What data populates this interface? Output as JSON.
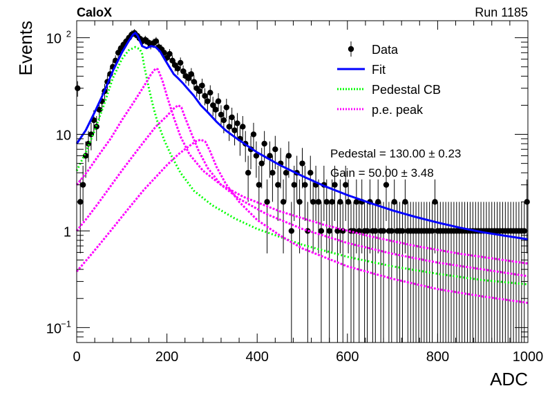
{
  "chart_data": {
    "type": "scatter",
    "experiment_label": "CaloX",
    "run_label": "Run 1185",
    "xlabel": "ADC",
    "ylabel": "Events",
    "xlim": [
      0,
      1000
    ],
    "ylim": [
      0.07,
      150
    ],
    "y_scale": "log",
    "x_ticks": [
      {
        "value": 0,
        "label": "0"
      },
      {
        "value": 200,
        "label": "200"
      },
      {
        "value": 400,
        "label": "400"
      },
      {
        "value": 600,
        "label": "600"
      },
      {
        "value": 800,
        "label": "800"
      },
      {
        "value": 1000,
        "label": "1000"
      }
    ],
    "y_ticks": [
      {
        "value": 0.1,
        "label": "10",
        "sup": "−1"
      },
      {
        "value": 1,
        "label": "1",
        "sup": ""
      },
      {
        "value": 10,
        "label": "10",
        "sup": ""
      },
      {
        "value": 100,
        "label": "10",
        "sup": "2"
      }
    ],
    "legend": {
      "position": "top-right",
      "entries": [
        {
          "label": "Data",
          "style": "marker",
          "color": "#000000"
        },
        {
          "label": "Fit",
          "style": "line",
          "color": "#0000ff"
        },
        {
          "label": "Pedestal CB",
          "style": "dotted",
          "color": "#00ff00"
        },
        {
          "label": "p.e. peak",
          "style": "dotted",
          "color": "#ff00ff"
        }
      ]
    },
    "annotations": [
      "Pedestal = 130.00 ± 0.23",
      "Gain = 50.00 ± 3.48"
    ],
    "fit_parameters": {
      "pedestal": 130.0,
      "pedestal_error": 0.23,
      "gain": 50.0,
      "gain_error": 3.48
    },
    "data_points": [
      {
        "x": 2,
        "y": 30
      },
      {
        "x": 8,
        "y": 2
      },
      {
        "x": 14,
        "y": 3
      },
      {
        "x": 20,
        "y": 6
      },
      {
        "x": 26,
        "y": 8
      },
      {
        "x": 32,
        "y": 10
      },
      {
        "x": 38,
        "y": 14
      },
      {
        "x": 44,
        "y": 12
      },
      {
        "x": 50,
        "y": 18
      },
      {
        "x": 56,
        "y": 22
      },
      {
        "x": 62,
        "y": 28
      },
      {
        "x": 68,
        "y": 35
      },
      {
        "x": 74,
        "y": 42
      },
      {
        "x": 80,
        "y": 50
      },
      {
        "x": 86,
        "y": 58
      },
      {
        "x": 92,
        "y": 70
      },
      {
        "x": 98,
        "y": 78
      },
      {
        "x": 104,
        "y": 85
      },
      {
        "x": 110,
        "y": 92
      },
      {
        "x": 116,
        "y": 100
      },
      {
        "x": 122,
        "y": 108
      },
      {
        "x": 128,
        "y": 112
      },
      {
        "x": 134,
        "y": 105
      },
      {
        "x": 140,
        "y": 98
      },
      {
        "x": 146,
        "y": 92
      },
      {
        "x": 152,
        "y": 95
      },
      {
        "x": 158,
        "y": 90
      },
      {
        "x": 164,
        "y": 85
      },
      {
        "x": 170,
        "y": 88
      },
      {
        "x": 176,
        "y": 92
      },
      {
        "x": 182,
        "y": 80
      },
      {
        "x": 188,
        "y": 76
      },
      {
        "x": 194,
        "y": 70
      },
      {
        "x": 200,
        "y": 62
      },
      {
        "x": 206,
        "y": 68
      },
      {
        "x": 212,
        "y": 58
      },
      {
        "x": 218,
        "y": 52
      },
      {
        "x": 224,
        "y": 48
      },
      {
        "x": 230,
        "y": 55
      },
      {
        "x": 236,
        "y": 45
      },
      {
        "x": 242,
        "y": 40
      },
      {
        "x": 248,
        "y": 38
      },
      {
        "x": 254,
        "y": 42
      },
      {
        "x": 260,
        "y": 35
      },
      {
        "x": 266,
        "y": 30
      },
      {
        "x": 272,
        "y": 28
      },
      {
        "x": 278,
        "y": 32
      },
      {
        "x": 284,
        "y": 25
      },
      {
        "x": 290,
        "y": 22
      },
      {
        "x": 296,
        "y": 27
      },
      {
        "x": 302,
        "y": 20
      },
      {
        "x": 308,
        "y": 18
      },
      {
        "x": 314,
        "y": 22
      },
      {
        "x": 320,
        "y": 16
      },
      {
        "x": 326,
        "y": 14
      },
      {
        "x": 332,
        "y": 19
      },
      {
        "x": 338,
        "y": 12
      },
      {
        "x": 344,
        "y": 15
      },
      {
        "x": 350,
        "y": 11
      },
      {
        "x": 356,
        "y": 13
      },
      {
        "x": 362,
        "y": 9
      },
      {
        "x": 368,
        "y": 12
      },
      {
        "x": 374,
        "y": 8
      },
      {
        "x": 380,
        "y": 4
      },
      {
        "x": 386,
        "y": 7
      },
      {
        "x": 392,
        "y": 10
      },
      {
        "x": 398,
        "y": 6
      },
      {
        "x": 404,
        "y": 3
      },
      {
        "x": 410,
        "y": 5
      },
      {
        "x": 416,
        "y": 8
      },
      {
        "x": 422,
        "y": 2
      },
      {
        "x": 428,
        "y": 6
      },
      {
        "x": 434,
        "y": 4
      },
      {
        "x": 440,
        "y": 7
      },
      {
        "x": 446,
        "y": 3
      },
      {
        "x": 452,
        "y": 5
      },
      {
        "x": 458,
        "y": 2
      },
      {
        "x": 464,
        "y": 4
      },
      {
        "x": 470,
        "y": 6
      },
      {
        "x": 476,
        "y": 1
      },
      {
        "x": 482,
        "y": 3
      },
      {
        "x": 488,
        "y": 4
      },
      {
        "x": 494,
        "y": 2
      },
      {
        "x": 500,
        "y": 5
      },
      {
        "x": 506,
        "y": 3
      },
      {
        "x": 512,
        "y": 1
      },
      {
        "x": 518,
        "y": 4
      },
      {
        "x": 524,
        "y": 2
      },
      {
        "x": 530,
        "y": 3
      },
      {
        "x": 536,
        "y": 2
      },
      {
        "x": 542,
        "y": 1
      },
      {
        "x": 548,
        "y": 3
      },
      {
        "x": 554,
        "y": 2
      },
      {
        "x": 560,
        "y": 1
      },
      {
        "x": 566,
        "y": 2
      },
      {
        "x": 572,
        "y": 3
      },
      {
        "x": 578,
        "y": 1
      },
      {
        "x": 584,
        "y": 2
      },
      {
        "x": 590,
        "y": 1
      },
      {
        "x": 596,
        "y": 3
      },
      {
        "x": 602,
        "y": 2
      },
      {
        "x": 608,
        "y": 1
      },
      {
        "x": 614,
        "y": 1
      },
      {
        "x": 620,
        "y": 2
      },
      {
        "x": 626,
        "y": 1
      },
      {
        "x": 632,
        "y": 2
      },
      {
        "x": 638,
        "y": 1
      },
      {
        "x": 644,
        "y": 1
      },
      {
        "x": 650,
        "y": 2
      },
      {
        "x": 656,
        "y": 1
      },
      {
        "x": 662,
        "y": 1
      },
      {
        "x": 668,
        "y": 2
      },
      {
        "x": 674,
        "y": 1
      },
      {
        "x": 680,
        "y": 1
      },
      {
        "x": 686,
        "y": 3
      },
      {
        "x": 692,
        "y": 1
      },
      {
        "x": 698,
        "y": 1
      },
      {
        "x": 704,
        "y": 2
      },
      {
        "x": 710,
        "y": 1
      },
      {
        "x": 716,
        "y": 1
      },
      {
        "x": 722,
        "y": 1
      },
      {
        "x": 728,
        "y": 2
      },
      {
        "x": 734,
        "y": 1
      },
      {
        "x": 740,
        "y": 1
      },
      {
        "x": 746,
        "y": 1
      },
      {
        "x": 752,
        "y": 1
      },
      {
        "x": 758,
        "y": 1
      },
      {
        "x": 764,
        "y": 1
      },
      {
        "x": 770,
        "y": 1
      },
      {
        "x": 776,
        "y": 1
      },
      {
        "x": 782,
        "y": 1
      },
      {
        "x": 788,
        "y": 1
      },
      {
        "x": 794,
        "y": 2
      },
      {
        "x": 800,
        "y": 1
      },
      {
        "x": 806,
        "y": 1
      },
      {
        "x": 812,
        "y": 1
      },
      {
        "x": 818,
        "y": 1
      },
      {
        "x": 824,
        "y": 1
      },
      {
        "x": 830,
        "y": 1
      },
      {
        "x": 836,
        "y": 1
      },
      {
        "x": 842,
        "y": 1
      },
      {
        "x": 848,
        "y": 1
      },
      {
        "x": 854,
        "y": 1
      },
      {
        "x": 860,
        "y": 1
      },
      {
        "x": 866,
        "y": 1
      },
      {
        "x": 872,
        "y": 1
      },
      {
        "x": 878,
        "y": 1
      },
      {
        "x": 884,
        "y": 1
      },
      {
        "x": 890,
        "y": 1
      },
      {
        "x": 896,
        "y": 1
      },
      {
        "x": 902,
        "y": 1
      },
      {
        "x": 908,
        "y": 1
      },
      {
        "x": 914,
        "y": 1
      },
      {
        "x": 920,
        "y": 1
      },
      {
        "x": 926,
        "y": 1
      },
      {
        "x": 932,
        "y": 1
      },
      {
        "x": 938,
        "y": 1
      },
      {
        "x": 944,
        "y": 1
      },
      {
        "x": 950,
        "y": 1
      },
      {
        "x": 956,
        "y": 1
      },
      {
        "x": 962,
        "y": 1
      },
      {
        "x": 968,
        "y": 1
      },
      {
        "x": 974,
        "y": 1
      },
      {
        "x": 980,
        "y": 1
      },
      {
        "x": 986,
        "y": 1
      },
      {
        "x": 992,
        "y": 1
      },
      {
        "x": 998,
        "y": 2
      }
    ],
    "fit_curve": [
      [
        0,
        8
      ],
      [
        20,
        11
      ],
      [
        40,
        17
      ],
      [
        60,
        27
      ],
      [
        80,
        45
      ],
      [
        100,
        70
      ],
      [
        115,
        92
      ],
      [
        125,
        108
      ],
      [
        130,
        112
      ],
      [
        135,
        105
      ],
      [
        145,
        82
      ],
      [
        155,
        78
      ],
      [
        165,
        82
      ],
      [
        175,
        80
      ],
      [
        185,
        72
      ],
      [
        195,
        60
      ],
      [
        205,
        50
      ],
      [
        215,
        42
      ],
      [
        225,
        38
      ],
      [
        235,
        34
      ],
      [
        245,
        30
      ],
      [
        260,
        25
      ],
      [
        275,
        20
      ],
      [
        290,
        17
      ],
      [
        310,
        13.5
      ],
      [
        330,
        11
      ],
      [
        350,
        9.4
      ],
      [
        375,
        7.8
      ],
      [
        400,
        6.5
      ],
      [
        450,
        4.8
      ],
      [
        500,
        3.7
      ],
      [
        550,
        2.9
      ],
      [
        600,
        2.35
      ],
      [
        650,
        1.95
      ],
      [
        700,
        1.63
      ],
      [
        750,
        1.4
      ],
      [
        800,
        1.22
      ],
      [
        850,
        1.08
      ],
      [
        900,
        0.97
      ],
      [
        950,
        0.89
      ],
      [
        1000,
        0.82
      ]
    ],
    "pedestal_curve": [
      [
        0,
        4.2
      ],
      [
        20,
        6.5
      ],
      [
        40,
        11
      ],
      [
        60,
        20
      ],
      [
        80,
        38
      ],
      [
        100,
        60
      ],
      [
        115,
        74
      ],
      [
        130,
        80
      ],
      [
        140,
        76
      ],
      [
        145,
        68
      ],
      [
        150,
        50
      ],
      [
        160,
        30
      ],
      [
        170,
        19
      ],
      [
        180,
        13
      ],
      [
        195,
        8.5
      ],
      [
        210,
        6
      ],
      [
        230,
        4
      ],
      [
        260,
        2.6
      ],
      [
        300,
        1.85
      ],
      [
        350,
        1.35
      ],
      [
        400,
        1.05
      ],
      [
        500,
        0.72
      ],
      [
        600,
        0.54
      ],
      [
        700,
        0.43
      ],
      [
        800,
        0.36
      ],
      [
        900,
        0.31
      ],
      [
        1000,
        0.28
      ]
    ],
    "pe_peak_curves": [
      [
        [
          0,
          3.0
        ],
        [
          25,
          4.2
        ],
        [
          50,
          6.2
        ],
        [
          75,
          9
        ],
        [
          100,
          14
        ],
        [
          125,
          21
        ],
        [
          150,
          32
        ],
        [
          165,
          42
        ],
        [
          175,
          48
        ],
        [
          180,
          47
        ],
        [
          190,
          36
        ],
        [
          200,
          25
        ],
        [
          215,
          15
        ],
        [
          230,
          9.5
        ],
        [
          250,
          6.2
        ],
        [
          280,
          4.2
        ],
        [
          320,
          3.0
        ],
        [
          370,
          2.25
        ],
        [
          450,
          1.6
        ],
        [
          550,
          1.15
        ],
        [
          650,
          0.88
        ],
        [
          750,
          0.7
        ],
        [
          850,
          0.58
        ],
        [
          1000,
          0.46
        ]
      ],
      [
        [
          0,
          1.0
        ],
        [
          25,
          1.4
        ],
        [
          50,
          2.0
        ],
        [
          75,
          2.9
        ],
        [
          100,
          4.2
        ],
        [
          125,
          6.0
        ],
        [
          150,
          8.5
        ],
        [
          175,
          12
        ],
        [
          200,
          15.5
        ],
        [
          215,
          18.5
        ],
        [
          225,
          20
        ],
        [
          232,
          19
        ],
        [
          240,
          15
        ],
        [
          255,
          10
        ],
        [
          270,
          6.8
        ],
        [
          290,
          4.5
        ],
        [
          320,
          3.0
        ],
        [
          360,
          2.15
        ],
        [
          420,
          1.5
        ],
        [
          500,
          1.05
        ],
        [
          600,
          0.75
        ],
        [
          700,
          0.58
        ],
        [
          800,
          0.47
        ],
        [
          900,
          0.4
        ],
        [
          1000,
          0.34
        ]
      ],
      [
        [
          0,
          0.38
        ],
        [
          25,
          0.52
        ],
        [
          50,
          0.72
        ],
        [
          75,
          1.0
        ],
        [
          100,
          1.4
        ],
        [
          125,
          1.95
        ],
        [
          150,
          2.7
        ],
        [
          175,
          3.6
        ],
        [
          200,
          4.8
        ],
        [
          225,
          6.2
        ],
        [
          250,
          7.6
        ],
        [
          265,
          8.5
        ],
        [
          275,
          8.8
        ],
        [
          285,
          8.4
        ],
        [
          295,
          6.8
        ],
        [
          310,
          4.6
        ],
        [
          330,
          3.1
        ],
        [
          360,
          2.0
        ],
        [
          400,
          1.3
        ],
        [
          450,
          0.9
        ],
        [
          500,
          0.66
        ],
        [
          600,
          0.43
        ],
        [
          700,
          0.32
        ],
        [
          800,
          0.25
        ],
        [
          900,
          0.21
        ],
        [
          1000,
          0.18
        ]
      ]
    ]
  }
}
